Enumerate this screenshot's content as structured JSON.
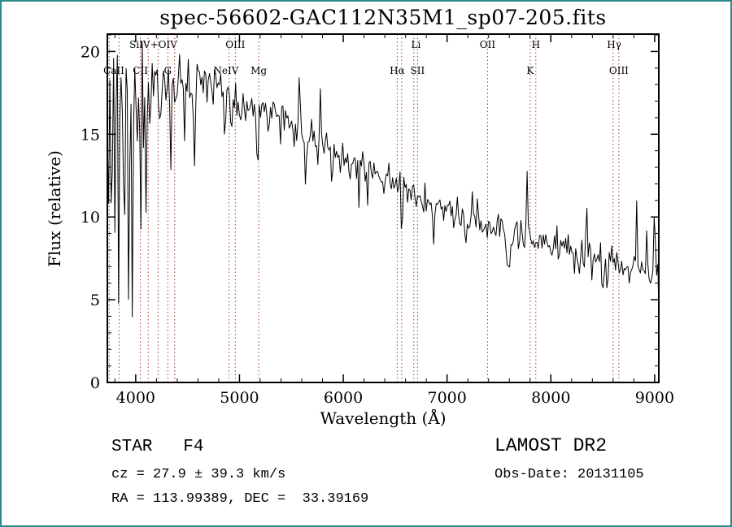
{
  "window": {
    "background": "#ffffff",
    "border_color": "#2e8b8b"
  },
  "chart_data": {
    "type": "line",
    "title": "spec-56602-GAC112N35M1_sp07-205.fits",
    "xlabel": "Wavelength (Å)",
    "ylabel": "Flux (relative)",
    "xlim": [
      3727,
      9040
    ],
    "ylim": [
      0,
      21.05
    ],
    "xticks": [
      4000,
      5000,
      6000,
      7000,
      8000,
      9000
    ],
    "x_minor_step": 200,
    "yticks": [
      0,
      5,
      10,
      15,
      20
    ],
    "y_minor_step": 1,
    "grid": false,
    "line_color": "#000000",
    "marker_color": "#a03a32",
    "label_color": "#8b2a22",
    "marker_wavelengths": [
      3745,
      3840,
      4045,
      4120,
      4215,
      4310,
      4375,
      4900,
      4960,
      5185,
      6520,
      6563,
      6680,
      6716,
      7390,
      7800,
      7855,
      8600,
      8655
    ],
    "line_labels": [
      {
        "text": "SiIV+OIV",
        "wl": 4170,
        "row": 1
      },
      {
        "text": "OIII",
        "wl": 4960,
        "row": 1
      },
      {
        "text": "Li",
        "wl": 6700,
        "row": 1
      },
      {
        "text": "OII",
        "wl": 7390,
        "row": 1
      },
      {
        "text": "H",
        "wl": 7855,
        "row": 1
      },
      {
        "text": "Hγ",
        "wl": 8610,
        "row": 1
      },
      {
        "text": "CaII",
        "wl": 3790,
        "row": 2
      },
      {
        "text": "CII",
        "wl": 4045,
        "row": 2
      },
      {
        "text": "G",
        "wl": 4310,
        "row": 2
      },
      {
        "text": "NeIV",
        "wl": 4870,
        "row": 2
      },
      {
        "text": "Mg",
        "wl": 5185,
        "row": 2
      },
      {
        "text": "Hα",
        "wl": 6520,
        "row": 2
      },
      {
        "text": "SII",
        "wl": 6716,
        "row": 2
      },
      {
        "text": "K",
        "wl": 7800,
        "row": 2
      },
      {
        "text": "OIII",
        "wl": 8655,
        "row": 2
      }
    ],
    "spectrum": {
      "seed": 11,
      "step": 12,
      "end_drop": 4.0,
      "continuum": [
        [
          3727,
          15.5
        ],
        [
          3760,
          17.2
        ],
        [
          3800,
          17.8
        ],
        [
          3860,
          18.0
        ],
        [
          3920,
          17.6
        ],
        [
          3980,
          17.4
        ],
        [
          4040,
          17.8
        ],
        [
          4120,
          18.2
        ],
        [
          4250,
          18.3
        ],
        [
          4400,
          18.5
        ],
        [
          4550,
          18.6
        ],
        [
          4700,
          18.4
        ],
        [
          4800,
          18.1
        ],
        [
          4900,
          17.7
        ],
        [
          5000,
          17.1
        ],
        [
          5100,
          16.7
        ],
        [
          5200,
          16.5
        ],
        [
          5350,
          16.3
        ],
        [
          5500,
          15.7
        ],
        [
          5650,
          15.0
        ],
        [
          5800,
          14.4
        ],
        [
          5950,
          13.8
        ],
        [
          6100,
          13.2
        ],
        [
          6250,
          12.7
        ],
        [
          6400,
          12.3
        ],
        [
          6563,
          11.8
        ],
        [
          6700,
          11.3
        ],
        [
          6850,
          10.8
        ],
        [
          7000,
          10.3
        ],
        [
          7150,
          9.9
        ],
        [
          7300,
          9.6
        ],
        [
          7450,
          9.4
        ],
        [
          7600,
          9.1
        ],
        [
          7750,
          8.8
        ],
        [
          7900,
          8.6
        ],
        [
          8050,
          8.3
        ],
        [
          8200,
          8.0
        ],
        [
          8350,
          7.8
        ],
        [
          8500,
          7.5
        ],
        [
          8650,
          7.2
        ],
        [
          8800,
          7.0
        ],
        [
          8950,
          6.8
        ],
        [
          9040,
          6.5
        ]
      ],
      "noise_sigma": [
        [
          3727,
          3900,
          2.2
        ],
        [
          3900,
          4150,
          1.4
        ],
        [
          4150,
          4600,
          0.8
        ],
        [
          4600,
          5600,
          0.55
        ],
        [
          5600,
          6600,
          0.5
        ],
        [
          6600,
          7600,
          0.42
        ],
        [
          7600,
          9041,
          0.5
        ]
      ],
      "spikes": [
        [
          3727,
          4450,
          0.1,
          5.0,
          0.92
        ],
        [
          4450,
          5800,
          0.05,
          2.4,
          0.8
        ],
        [
          5800,
          7600,
          0.045,
          2.0,
          0.6
        ],
        [
          7600,
          9041,
          0.05,
          2.2,
          0.5
        ]
      ],
      "features": [
        [
          3735,
          -6,
          5
        ],
        [
          3770,
          -7,
          5
        ],
        [
          3798,
          -9,
          5
        ],
        [
          3835,
          -11,
          5
        ],
        [
          3889,
          -12,
          5
        ],
        [
          3933,
          -12.5,
          6
        ],
        [
          3968,
          -11,
          6
        ],
        [
          4045,
          -5,
          5
        ],
        [
          4101,
          -8.5,
          6
        ],
        [
          4227,
          -3.5,
          5
        ],
        [
          4340,
          -6.5,
          6
        ],
        [
          4383,
          -3.5,
          5
        ],
        [
          4471,
          -3,
          5
        ],
        [
          4565,
          -6,
          5
        ],
        [
          4861,
          -4.5,
          6
        ],
        [
          4920,
          -2.5,
          5
        ],
        [
          5015,
          -2,
          5
        ],
        [
          5175,
          -2.3,
          12
        ],
        [
          5270,
          -1.6,
          7
        ],
        [
          5640,
          -3.6,
          5
        ],
        [
          5893,
          -2.2,
          8
        ],
        [
          6150,
          -2.4,
          5
        ],
        [
          6563,
          -3.3,
          7
        ],
        [
          6870,
          -1.7,
          12
        ],
        [
          7180,
          -1.3,
          10
        ],
        [
          7600,
          -2.3,
          16
        ],
        [
          8230,
          -1.4,
          8
        ],
        [
          8498,
          -1.6,
          7
        ],
        [
          8542,
          -2.0,
          7
        ],
        [
          8662,
          -1.8,
          7
        ],
        [
          5577,
          3.8,
          5
        ],
        [
          6300,
          1.6,
          5
        ],
        [
          7245,
          2.2,
          5
        ],
        [
          7772,
          4.2,
          5
        ],
        [
          8344,
          3.9,
          5
        ],
        [
          8827,
          4.1,
          5
        ],
        [
          8919,
          2.6,
          5
        ],
        [
          9000,
          5.0,
          5
        ]
      ]
    }
  },
  "footer": {
    "class_label": "STAR   F4",
    "survey": "LAMOST DR2",
    "cz": "cz = 27.9 ± 39.3 km/s",
    "obs_date": "Obs-Date: 20131105",
    "coords": "RA = 113.99389, DEC =  33.39169"
  }
}
